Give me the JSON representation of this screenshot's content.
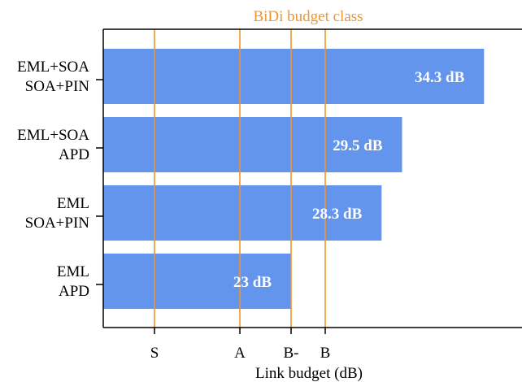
{
  "chart_data": {
    "type": "bar",
    "orientation": "horizontal",
    "title": "BiDi budget class",
    "xlabel": "Link budget (dB)",
    "ylabel": "",
    "categories": [
      [
        "EML+SOA",
        "SOA+PIN"
      ],
      [
        "EML+SOA",
        "APD"
      ],
      [
        "EML",
        "SOA+PIN"
      ],
      [
        "EML",
        "APD"
      ]
    ],
    "values": [
      34.3,
      29.5,
      28.3,
      23
    ],
    "value_labels": [
      "34.3 dB",
      "29.5 dB",
      "28.3 dB",
      "23 dB"
    ],
    "budget_classes": [
      {
        "label": "S",
        "value": 15
      },
      {
        "label": "A",
        "value": 20
      },
      {
        "label": "B-",
        "value": 23
      },
      {
        "label": "B",
        "value": 25
      }
    ],
    "xlim": [
      12,
      35
    ],
    "grid": false,
    "colors": {
      "bar": "#6495ED",
      "class_line": "#F0952E",
      "title": "#F0952E",
      "axis": "#000000"
    }
  }
}
